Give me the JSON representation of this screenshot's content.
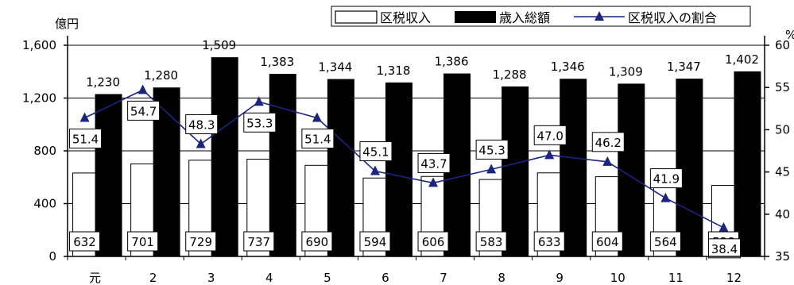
{
  "chart_data": {
    "type": "bar",
    "categories": [
      "元",
      "2",
      "3",
      "4",
      "5",
      "6",
      "7",
      "8",
      "9",
      "10",
      "11",
      "12"
    ],
    "series": [
      {
        "name": "区税収入",
        "type": "bar",
        "color": "#ffffff",
        "values": [
          632,
          701,
          729,
          737,
          690,
          594,
          606,
          583,
          633,
          604,
          564,
          538
        ]
      },
      {
        "name": "歳入総額",
        "type": "bar",
        "color": "#000000",
        "values": [
          1230,
          1280,
          1509,
          1383,
          1344,
          1318,
          1386,
          1288,
          1346,
          1309,
          1347,
          1402
        ]
      },
      {
        "name": "区税収入の割合",
        "type": "line",
        "axis": "right",
        "color": "#1a2580",
        "values": [
          51.4,
          54.7,
          48.3,
          53.3,
          51.4,
          45.1,
          43.7,
          45.3,
          47.0,
          46.2,
          41.9,
          38.4
        ]
      }
    ],
    "bar_labels": [
      [
        "632",
        "701",
        "729",
        "737",
        "690",
        "594",
        "606",
        "583",
        "633",
        "604",
        "564",
        "538"
      ],
      [
        "1,230",
        "1,280",
        "1,509",
        "1,383",
        "1,344",
        "1,318",
        "1,386",
        "1,288",
        "1,346",
        "1,309",
        "1,347",
        "1,402"
      ]
    ],
    "line_labels": [
      "51.4",
      "54.7",
      "48.3",
      "53.3",
      "51.4",
      "45.1",
      "43.7",
      "45.3",
      "47.0",
      "46.2",
      "41.9",
      "38.4"
    ],
    "ylim": [
      0,
      1600
    ],
    "yticks": [
      0,
      400,
      800,
      1200,
      1600
    ],
    "ytick_labels": [
      "0",
      "400",
      "800",
      "1,200",
      "1,600"
    ],
    "y2lim": [
      35,
      60
    ],
    "y2ticks": [
      35,
      40,
      45,
      50,
      55,
      60
    ],
    "y2tick_labels": [
      "35",
      "40",
      "45",
      "50",
      "55",
      "60"
    ],
    "ylabel": "億円",
    "y2label": "%",
    "legend_position": "top"
  }
}
